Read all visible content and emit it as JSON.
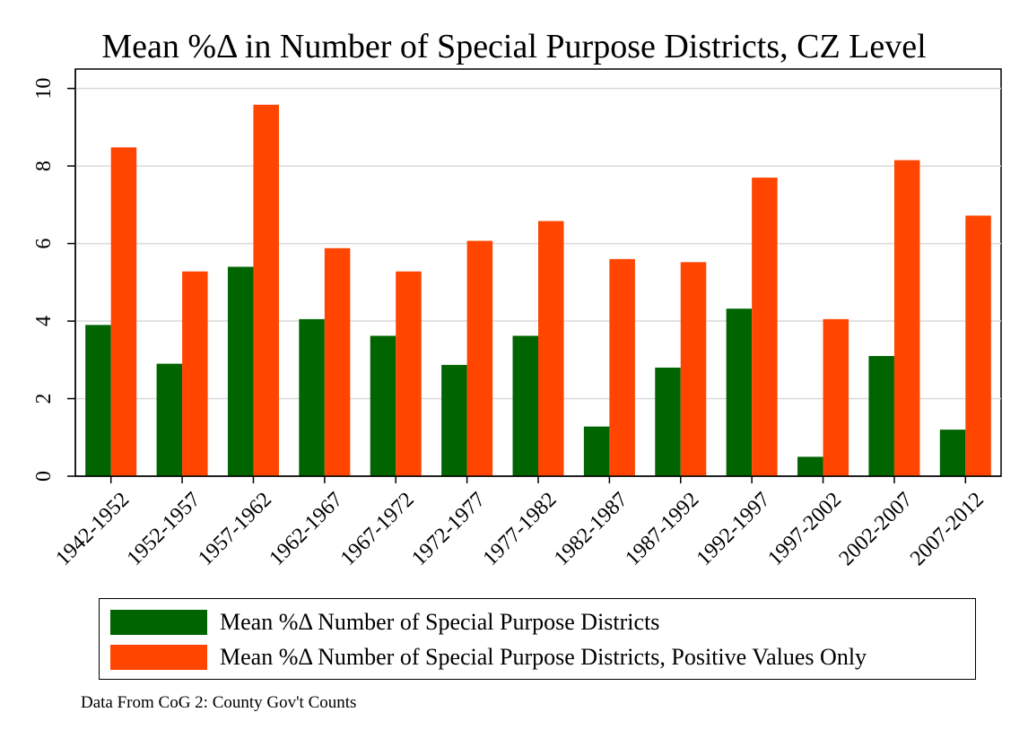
{
  "chart_data": {
    "type": "bar",
    "title": "Mean %Δ in Number of Special Purpose Districts, CZ Level",
    "xlabel": "",
    "ylabel": "",
    "ylim": [
      0,
      10.5
    ],
    "y_ticks": [
      0,
      2,
      4,
      6,
      8,
      10
    ],
    "grid": true,
    "legend_position": "bottom",
    "categories": [
      "1942-1952",
      "1952-1957",
      "1957-1962",
      "1962-1967",
      "1967-1972",
      "1972-1977",
      "1977-1982",
      "1982-1987",
      "1987-1992",
      "1992-1997",
      "1997-2002",
      "2002-2007",
      "2007-2012"
    ],
    "series": [
      {
        "name": "Mean %Δ Number of Special Purpose Districts",
        "color": "#006400",
        "values": [
          3.9,
          2.9,
          5.4,
          4.05,
          3.62,
          2.87,
          3.62,
          1.28,
          2.8,
          4.32,
          0.5,
          3.1,
          1.2
        ]
      },
      {
        "name": "Mean %Δ Number of Special Purpose Districts, Positive Values Only",
        "color": "#ff4500",
        "values": [
          8.48,
          5.28,
          9.58,
          5.88,
          5.28,
          6.07,
          6.58,
          5.6,
          5.52,
          7.7,
          4.05,
          8.15,
          6.72
        ]
      }
    ],
    "note": "Data From CoG 2: County Gov't Counts"
  }
}
